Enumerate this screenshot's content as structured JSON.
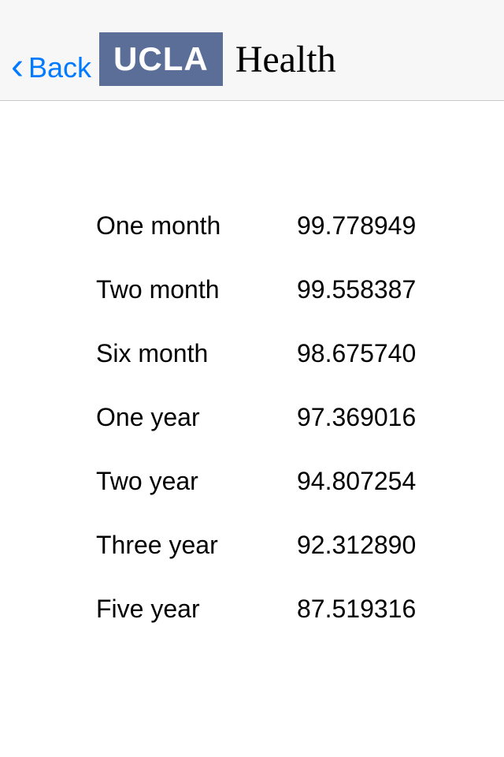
{
  "nav": {
    "back_label": "Back",
    "logo_badge": "UCLA",
    "logo_text": "Health",
    "badge_bg": "#5a6e97",
    "badge_fg": "#ffffff",
    "back_color": "#007aff",
    "navbar_bg": "#f7f7f7",
    "navbar_border": "#c8c8c8"
  },
  "table": {
    "label_fontsize": 32,
    "value_fontsize": 32,
    "text_color": "#000000",
    "rows": [
      {
        "label": "One month",
        "value": "99.778949"
      },
      {
        "label": "Two month",
        "value": "99.558387"
      },
      {
        "label": "Six month",
        "value": "98.675740"
      },
      {
        "label": "One year",
        "value": "97.369016"
      },
      {
        "label": "Two year",
        "value": "94.807254"
      },
      {
        "label": "Three year",
        "value": "92.312890"
      },
      {
        "label": "Five year",
        "value": "87.519316"
      }
    ]
  }
}
